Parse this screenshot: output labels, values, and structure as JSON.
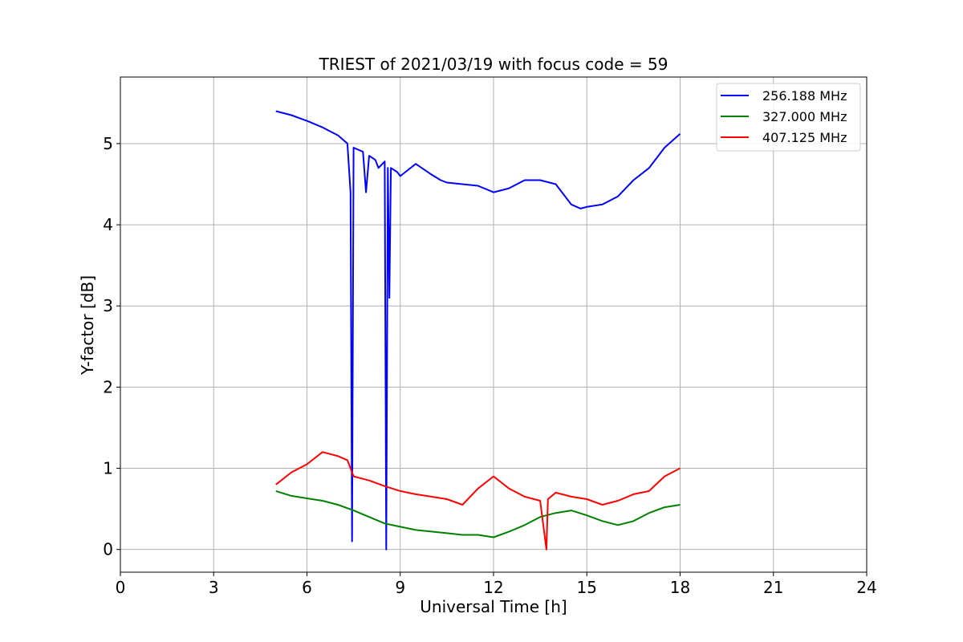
{
  "chart_data": {
    "type": "line",
    "title": "TRIEST of 2021/03/19 with focus code = 59",
    "xlabel": "Universal Time [h]",
    "ylabel": "Y-factor [dB]",
    "xlim": [
      0,
      24
    ],
    "ylim": [
      -0.28,
      5.82
    ],
    "xticks": [
      0,
      3,
      6,
      9,
      12,
      15,
      18,
      21,
      24
    ],
    "yticks": [
      0,
      1,
      2,
      3,
      4,
      5
    ],
    "grid": true,
    "legend_position": "top-right",
    "series": [
      {
        "name": "256.188 MHz",
        "color": "#0000ff",
        "x": [
          5.0,
          5.5,
          6.0,
          6.5,
          7.0,
          7.3,
          7.4,
          7.45,
          7.5,
          7.8,
          7.9,
          8.0,
          8.2,
          8.3,
          8.5,
          8.55,
          8.6,
          8.65,
          8.7,
          8.9,
          9.0,
          9.5,
          10.0,
          10.3,
          10.5,
          11.0,
          11.5,
          12.0,
          12.5,
          13.0,
          13.5,
          14.0,
          14.5,
          14.8,
          15.0,
          15.5,
          16.0,
          16.5,
          17.0,
          17.5,
          18.0
        ],
        "y": [
          5.4,
          5.35,
          5.28,
          5.2,
          5.1,
          5.0,
          4.4,
          0.1,
          4.95,
          4.9,
          4.4,
          4.85,
          4.8,
          4.7,
          4.78,
          0.0,
          4.7,
          3.1,
          4.7,
          4.65,
          4.6,
          4.75,
          4.62,
          4.55,
          4.52,
          4.5,
          4.48,
          4.4,
          4.45,
          4.55,
          4.55,
          4.5,
          4.25,
          4.2,
          4.22,
          4.25,
          4.35,
          4.55,
          4.7,
          4.95,
          5.12
        ]
      },
      {
        "name": "327.000 MHz",
        "color": "#008000",
        "x": [
          5.0,
          5.5,
          6.0,
          6.5,
          7.0,
          7.5,
          8.0,
          8.5,
          9.0,
          9.5,
          10.0,
          10.5,
          11.0,
          11.5,
          12.0,
          12.5,
          13.0,
          13.5,
          14.0,
          14.5,
          15.0,
          15.5,
          16.0,
          16.5,
          17.0,
          17.5,
          18.0
        ],
        "y": [
          0.72,
          0.66,
          0.63,
          0.6,
          0.55,
          0.48,
          0.4,
          0.32,
          0.28,
          0.24,
          0.22,
          0.2,
          0.18,
          0.18,
          0.15,
          0.22,
          0.3,
          0.4,
          0.45,
          0.48,
          0.42,
          0.35,
          0.3,
          0.35,
          0.45,
          0.52,
          0.55
        ]
      },
      {
        "name": "407.125 MHz",
        "color": "#ff0000",
        "x": [
          5.0,
          5.5,
          6.0,
          6.5,
          7.0,
          7.3,
          7.5,
          8.0,
          8.5,
          9.0,
          9.5,
          10.0,
          10.5,
          11.0,
          11.5,
          12.0,
          12.5,
          13.0,
          13.5,
          13.7,
          13.75,
          14.0,
          14.5,
          15.0,
          15.5,
          16.0,
          16.5,
          17.0,
          17.5,
          18.0
        ],
        "y": [
          0.8,
          0.95,
          1.05,
          1.2,
          1.15,
          1.1,
          0.9,
          0.85,
          0.78,
          0.72,
          0.68,
          0.65,
          0.62,
          0.55,
          0.75,
          0.9,
          0.75,
          0.65,
          0.6,
          0.0,
          0.62,
          0.7,
          0.65,
          0.62,
          0.55,
          0.6,
          0.68,
          0.72,
          0.9,
          1.0
        ]
      }
    ]
  }
}
